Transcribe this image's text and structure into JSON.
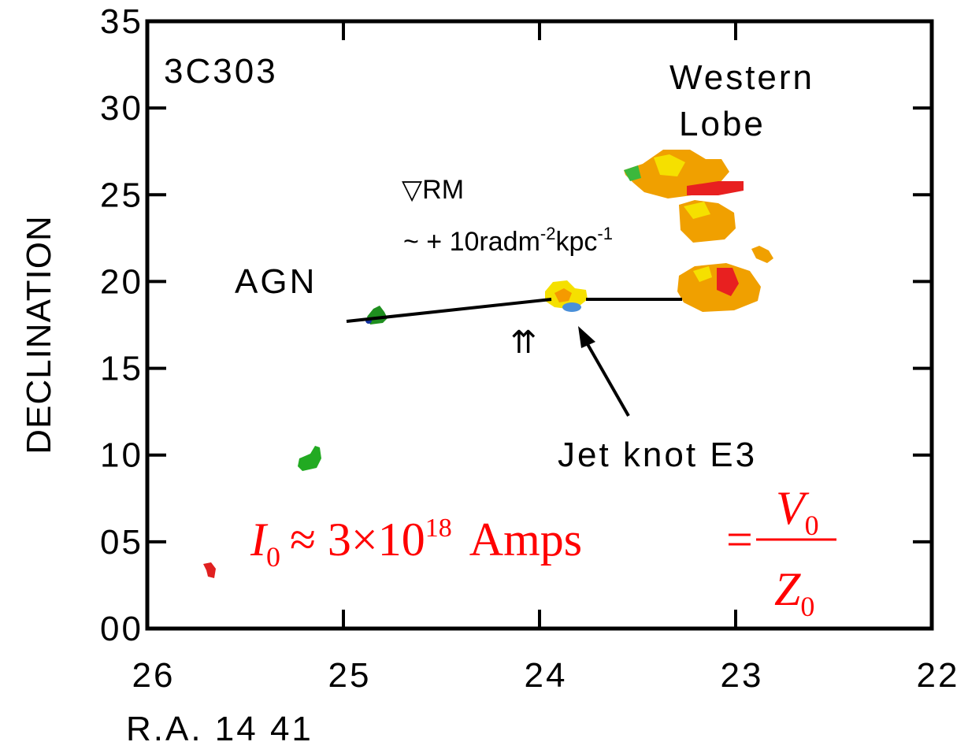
{
  "chart_data": {
    "type": "map",
    "xlabel": "R.A. 14 41",
    "ylabel": "DECLINATION",
    "xlim": [
      26,
      22
    ],
    "ylim": [
      0,
      35
    ],
    "xticks": [
      26,
      25,
      24,
      23,
      22
    ],
    "yticks": [
      {
        "value": 0,
        "label": "00"
      },
      {
        "value": 5,
        "label": "05"
      },
      10,
      15,
      20,
      25,
      30,
      35
    ],
    "annotations": {
      "source": "3C303",
      "lobe": [
        "Western",
        "Lobe"
      ],
      "rm": "▽RM",
      "rm_value": [
        "~ + 10radm",
        "-2",
        "kpc",
        "-1"
      ],
      "agn": "AGN",
      "arrows": "⇈",
      "knot": "Jet knot E3",
      "current": {
        "symbol": "I",
        "sub": "0",
        "approx": "≈ 3×10",
        "exp": "18",
        "unit": "Amps"
      },
      "impedance": {
        "eq": "=",
        "num": "V",
        "num_sub": "0",
        "den": "Z",
        "den_sub": "0"
      }
    }
  }
}
